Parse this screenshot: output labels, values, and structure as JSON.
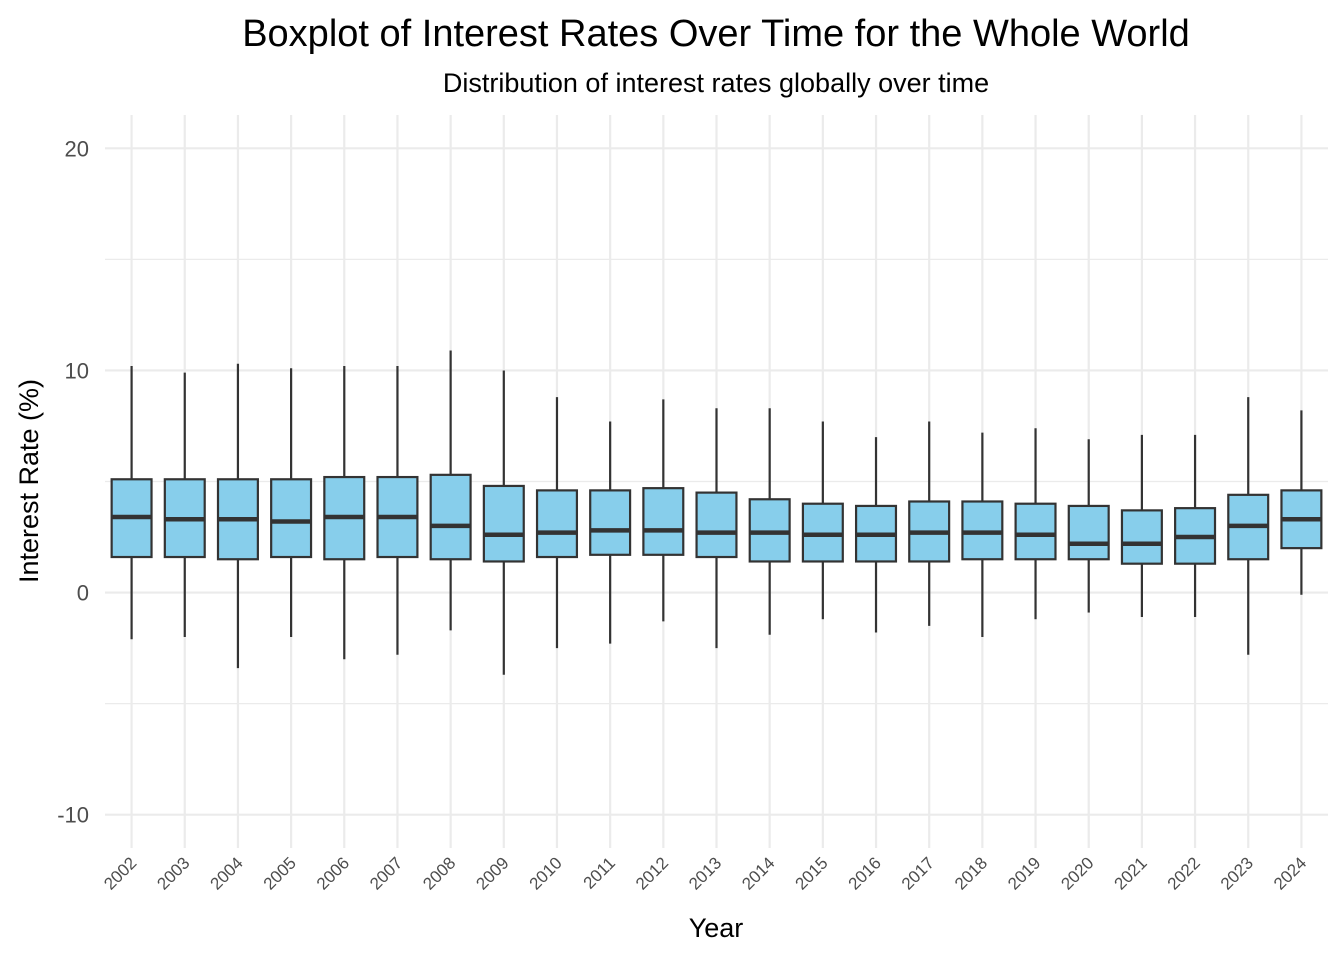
{
  "chart_data": {
    "type": "boxplot",
    "title": "Boxplot of Interest Rates Over Time for the Whole World",
    "subtitle": "Distribution of interest rates globally over time",
    "xlabel": "Year",
    "ylabel": "Interest Rate (%)",
    "ylim": [
      -11.5,
      21.5
    ],
    "yticks": [
      -10,
      0,
      10,
      20
    ],
    "grid": true,
    "legend": "none",
    "box_fill": "#87CEEB",
    "box_stroke": "#333333",
    "grid_color": "#EBEBEB",
    "categories": [
      "2002",
      "2003",
      "2004",
      "2005",
      "2006",
      "2007",
      "2008",
      "2009",
      "2010",
      "2011",
      "2012",
      "2013",
      "2014",
      "2015",
      "2016",
      "2017",
      "2018",
      "2019",
      "2020",
      "2021",
      "2022",
      "2023",
      "2024"
    ],
    "boxes": [
      {
        "min": -2.1,
        "q1": 1.6,
        "median": 3.4,
        "q3": 5.1,
        "max": 10.2
      },
      {
        "min": -2.0,
        "q1": 1.6,
        "median": 3.3,
        "q3": 5.1,
        "max": 9.9
      },
      {
        "min": -3.4,
        "q1": 1.5,
        "median": 3.3,
        "q3": 5.1,
        "max": 10.3
      },
      {
        "min": -2.0,
        "q1": 1.6,
        "median": 3.2,
        "q3": 5.1,
        "max": 10.1
      },
      {
        "min": -3.0,
        "q1": 1.5,
        "median": 3.4,
        "q3": 5.2,
        "max": 10.2
      },
      {
        "min": -2.8,
        "q1": 1.6,
        "median": 3.4,
        "q3": 5.2,
        "max": 10.2
      },
      {
        "min": -1.7,
        "q1": 1.5,
        "median": 3.0,
        "q3": 5.3,
        "max": 10.9
      },
      {
        "min": -3.7,
        "q1": 1.4,
        "median": 2.6,
        "q3": 4.8,
        "max": 10.0
      },
      {
        "min": -2.5,
        "q1": 1.6,
        "median": 2.7,
        "q3": 4.6,
        "max": 8.8
      },
      {
        "min": -2.3,
        "q1": 1.7,
        "median": 2.8,
        "q3": 4.6,
        "max": 7.7
      },
      {
        "min": -1.3,
        "q1": 1.7,
        "median": 2.8,
        "q3": 4.7,
        "max": 8.7
      },
      {
        "min": -2.5,
        "q1": 1.6,
        "median": 2.7,
        "q3": 4.5,
        "max": 8.3
      },
      {
        "min": -1.9,
        "q1": 1.4,
        "median": 2.7,
        "q3": 4.2,
        "max": 8.3
      },
      {
        "min": -1.2,
        "q1": 1.4,
        "median": 2.6,
        "q3": 4.0,
        "max": 7.7
      },
      {
        "min": -1.8,
        "q1": 1.4,
        "median": 2.6,
        "q3": 3.9,
        "max": 7.0
      },
      {
        "min": -1.5,
        "q1": 1.4,
        "median": 2.7,
        "q3": 4.1,
        "max": 7.7
      },
      {
        "min": -2.0,
        "q1": 1.5,
        "median": 2.7,
        "q3": 4.1,
        "max": 7.2
      },
      {
        "min": -1.2,
        "q1": 1.5,
        "median": 2.6,
        "q3": 4.0,
        "max": 7.4
      },
      {
        "min": -0.9,
        "q1": 1.5,
        "median": 2.2,
        "q3": 3.9,
        "max": 6.9
      },
      {
        "min": -1.1,
        "q1": 1.3,
        "median": 2.2,
        "q3": 3.7,
        "max": 7.1
      },
      {
        "min": -1.1,
        "q1": 1.3,
        "median": 2.5,
        "q3": 3.8,
        "max": 7.1
      },
      {
        "min": -2.8,
        "q1": 1.5,
        "median": 3.0,
        "q3": 4.4,
        "max": 8.8
      },
      {
        "min": -0.1,
        "q1": 2.0,
        "median": 3.3,
        "q3": 4.6,
        "max": 8.2
      }
    ]
  }
}
